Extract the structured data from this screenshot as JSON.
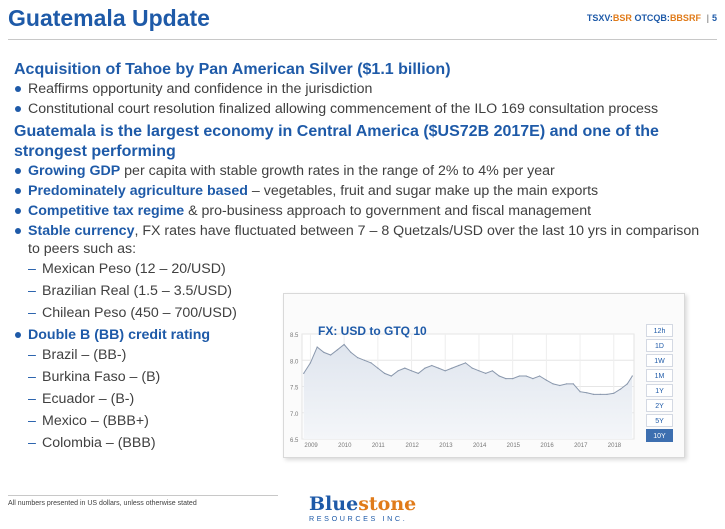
{
  "header": {
    "title": "Guatemala Update",
    "ticker_prefix_1": "TSXV:",
    "ticker_symbol_1": "BSR",
    "ticker_prefix_2": "OTCQB:",
    "ticker_symbol_2": "BBSRF",
    "separator": "|",
    "page_number": "5"
  },
  "section1": {
    "heading": "Acquisition of Tahoe by Pan American Silver ($1.1 billion)",
    "bullets": [
      "Reaffirms opportunity and confidence in the jurisdiction",
      "Constitutional court resolution finalized allowing commencement of the ILO 169 consultation process"
    ]
  },
  "section2": {
    "heading": "Guatemala is the largest economy in Central America ($US72B 2017E) and one of the strongest performing",
    "bullets": [
      {
        "strong": "Growing GDP",
        "rest": " per capita with stable growth rates in the range of 2% to 4% per year"
      },
      {
        "strong": "Predominately agriculture based",
        "rest": " – vegetables, fruit and sugar make up the main exports"
      },
      {
        "strong": "Competitive tax regime",
        "rest": " & pro-business approach to government and fiscal management"
      },
      {
        "strong": "Stable currency",
        "rest": ", FX rates have fluctuated between 7 – 8 Quetzals/USD over the last 10 yrs in comparison to peers such as:"
      }
    ],
    "peers": [
      "Mexican Peso (12 – 20/USD)",
      "Brazilian Real (1.5 – 3.5/USD)",
      "Chilean Peso (450 – 700/USD)"
    ],
    "rating_heading": "Double B (BB) credit rating",
    "ratings": [
      "Brazil – (BB-)",
      "Burkina Faso – (B)",
      "Ecuador – (B-)",
      "Mexico – (BBB+)",
      "Colombia – (BBB)"
    ]
  },
  "chart_data": {
    "type": "line",
    "title": "FX: USD to GTQ 10",
    "xlabel": "",
    "ylabel": "",
    "ylim": [
      6.5,
      8.5
    ],
    "yticks": [
      "8.5",
      "8.0",
      "7.5",
      "7.0",
      "6.5"
    ],
    "xticks": [
      "2009",
      "2010",
      "2011",
      "2012",
      "2013",
      "2014",
      "2015",
      "2016",
      "2017",
      "2018"
    ],
    "x_range": [
      2008.75,
      2018.6
    ],
    "grid": true,
    "ranges": [
      "12h",
      "1D",
      "1W",
      "1M",
      "1Y",
      "2Y",
      "5Y",
      "10Y"
    ],
    "active_range": "10Y",
    "series": [
      {
        "x": [
          2008.8,
          2009.0,
          2009.2,
          2009.4,
          2009.6,
          2009.8,
          2010.0,
          2010.2,
          2010.4,
          2010.6,
          2010.8,
          2011.0,
          2011.2,
          2011.4,
          2011.6,
          2011.8,
          2012.0,
          2012.2,
          2012.4,
          2012.6,
          2012.8,
          2013.0,
          2013.2,
          2013.4,
          2013.6,
          2013.8,
          2014.0,
          2014.2,
          2014.4,
          2014.6,
          2014.8,
          2015.0,
          2015.2,
          2015.4,
          2015.6,
          2015.8,
          2016.0,
          2016.2,
          2016.4,
          2016.6,
          2016.8,
          2017.0,
          2017.2,
          2017.4,
          2017.6,
          2017.8,
          2018.0,
          2018.2,
          2018.4,
          2018.55
        ],
        "y": [
          7.75,
          7.95,
          8.25,
          8.15,
          8.1,
          8.2,
          8.3,
          8.15,
          8.05,
          8.0,
          7.95,
          7.85,
          7.75,
          7.7,
          7.8,
          7.85,
          7.8,
          7.75,
          7.85,
          7.9,
          7.85,
          7.8,
          7.85,
          7.9,
          7.95,
          7.85,
          7.8,
          7.75,
          7.8,
          7.7,
          7.65,
          7.65,
          7.7,
          7.7,
          7.65,
          7.7,
          7.62,
          7.55,
          7.52,
          7.55,
          7.55,
          7.4,
          7.38,
          7.35,
          7.35,
          7.35,
          7.37,
          7.45,
          7.55,
          7.7
        ]
      }
    ]
  },
  "footer": {
    "footnote": "All numbers presented in US dollars, unless otherwise stated",
    "logo_part1": "Blue",
    "logo_part2": "stone",
    "logo_sub": "RESOURCES INC."
  }
}
